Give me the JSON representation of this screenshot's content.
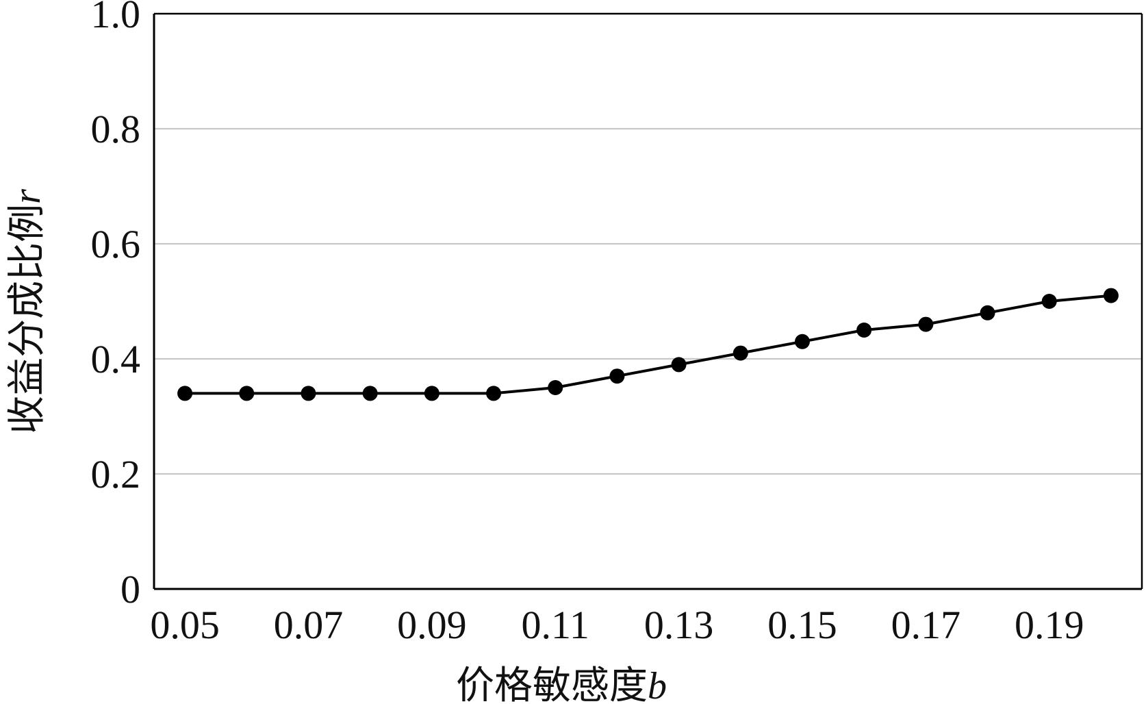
{
  "chart_data": {
    "type": "line",
    "title": "",
    "xlabel": "价格敏感度",
    "xlabel_var": "b",
    "ylabel": "收益分成比例",
    "ylabel_var": "r",
    "x": [
      0.05,
      0.06,
      0.07,
      0.08,
      0.09,
      0.1,
      0.11,
      0.12,
      0.13,
      0.14,
      0.15,
      0.16,
      0.17,
      0.18,
      0.19,
      0.2
    ],
    "series": [
      {
        "values": [
          0.34,
          0.34,
          0.34,
          0.34,
          0.34,
          0.34,
          0.35,
          0.37,
          0.39,
          0.41,
          0.43,
          0.45,
          0.46,
          0.48,
          0.5,
          0.51
        ]
      }
    ],
    "x_ticks": [
      "0.05",
      "0.07",
      "0.09",
      "0.11",
      "0.13",
      "0.15",
      "0.17",
      "0.19"
    ],
    "x_tick_values": [
      0.05,
      0.07,
      0.09,
      0.11,
      0.13,
      0.15,
      0.17,
      0.19
    ],
    "y_ticks": [
      "0",
      "0.2",
      "0.4",
      "0.6",
      "0.8",
      "1.0"
    ],
    "y_tick_values": [
      0,
      0.2,
      0.4,
      0.6,
      0.8,
      1.0
    ],
    "xlim": [
      0.045,
      0.205
    ],
    "ylim": [
      0,
      1.0
    ],
    "grid": "horizontal",
    "legend": "none",
    "colors": {
      "line": "#000000",
      "marker": "#000000",
      "grid": "#c8c8c8",
      "axis": "#000000"
    }
  }
}
